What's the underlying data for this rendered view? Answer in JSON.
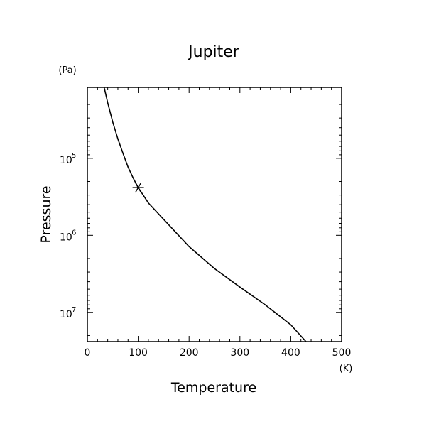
{
  "chart_data": {
    "type": "line",
    "title": "Jupiter",
    "xlabel": "Temperature",
    "ylabel": "Pressure",
    "x_unit": "(K)",
    "y_unit": "(Pa)",
    "xlim": [
      0,
      500
    ],
    "ylim": [
      12000.0,
      24000000.0
    ],
    "y_scale": "log",
    "y_inverted": true,
    "x_ticks": [
      {
        "value": 0,
        "label": "0"
      },
      {
        "value": 100,
        "label": "100"
      },
      {
        "value": 200,
        "label": "200"
      },
      {
        "value": 300,
        "label": "300"
      },
      {
        "value": 400,
        "label": "400"
      },
      {
        "value": 500,
        "label": "500"
      }
    ],
    "y_ticks": [
      {
        "value": 100000,
        "base": "10",
        "exp": "5"
      },
      {
        "value": 1000000,
        "base": "10",
        "exp": "6"
      },
      {
        "value": 10000000,
        "base": "10",
        "exp": "7"
      }
    ],
    "grid": false,
    "series": [
      {
        "color": "#000000",
        "points": [
          [
            33,
            12000
          ],
          [
            40,
            19000
          ],
          [
            50,
            34000
          ],
          [
            60,
            56000
          ],
          [
            70,
            86000
          ],
          [
            80,
            130000
          ],
          [
            90,
            180000
          ],
          [
            100,
            240000
          ],
          [
            120,
            380000
          ],
          [
            150,
            620000
          ],
          [
            200,
            1400000
          ],
          [
            250,
            2700000
          ],
          [
            300,
            4700000
          ],
          [
            350,
            8000000
          ],
          [
            400,
            14500000
          ],
          [
            430,
            24000000
          ]
        ]
      }
    ],
    "annotations": [
      {
        "type": "marker",
        "symbol": "asterisk",
        "x": 100,
        "y": 240000
      }
    ]
  }
}
